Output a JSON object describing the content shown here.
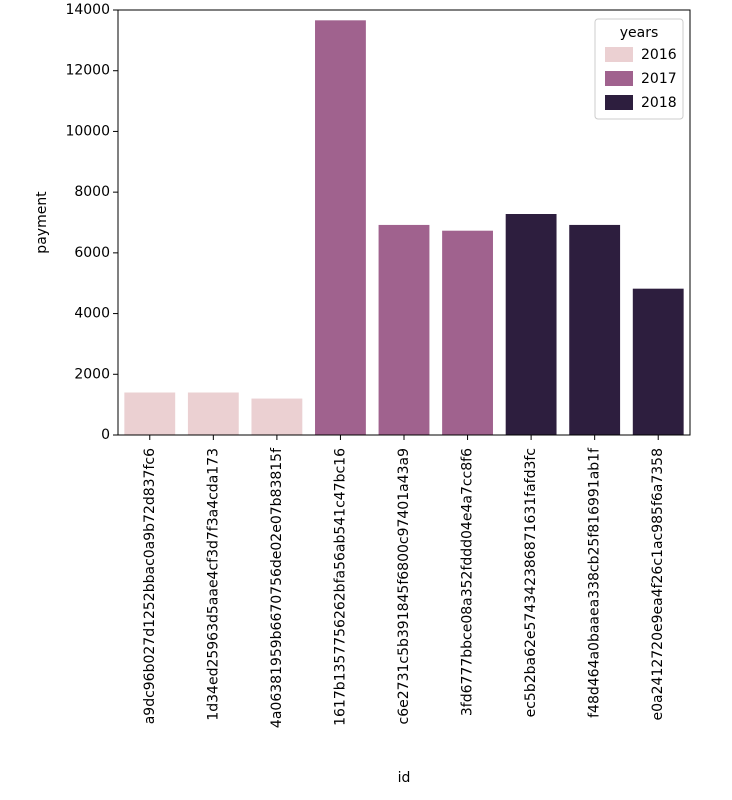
{
  "chart_data": {
    "type": "bar",
    "title": "",
    "xlabel": "id",
    "ylabel": "payment",
    "ylim": [
      0,
      14000
    ],
    "yticks": [
      0,
      2000,
      4000,
      6000,
      8000,
      10000,
      12000,
      14000
    ],
    "categories": [
      "a9dc96b027d1252bbac0a9b72d837fc6",
      "1d34ed25963d5aae4cf3d7f3a4cda173",
      "4a06381959b6670756de02e07b83815f",
      "1617b1357756262bfa56ab541c47bc16",
      "c6e2731c5b391845f6800c97401a43a9",
      "3fd6777bbce08a352fddd04e4a7cc8f6",
      "ec5b2ba62e574342386871631fafd3fc",
      "f48d464a0baaea338cb25f816991ab1f",
      "e0a2412720e9ea4f26c1ac985f6a7358"
    ],
    "values": [
      1400,
      1400,
      1200,
      13660,
      6920,
      6730,
      7280,
      6920,
      4820
    ],
    "years": [
      "2016",
      "2016",
      "2016",
      "2017",
      "2017",
      "2017",
      "2018",
      "2018",
      "2018"
    ],
    "legend": {
      "title": "years",
      "position": "top-right",
      "entries": [
        {
          "label": "2016",
          "color": "#ebd0d2"
        },
        {
          "label": "2017",
          "color": "#a0628e"
        },
        {
          "label": "2018",
          "color": "#2d1e3e"
        }
      ]
    }
  }
}
